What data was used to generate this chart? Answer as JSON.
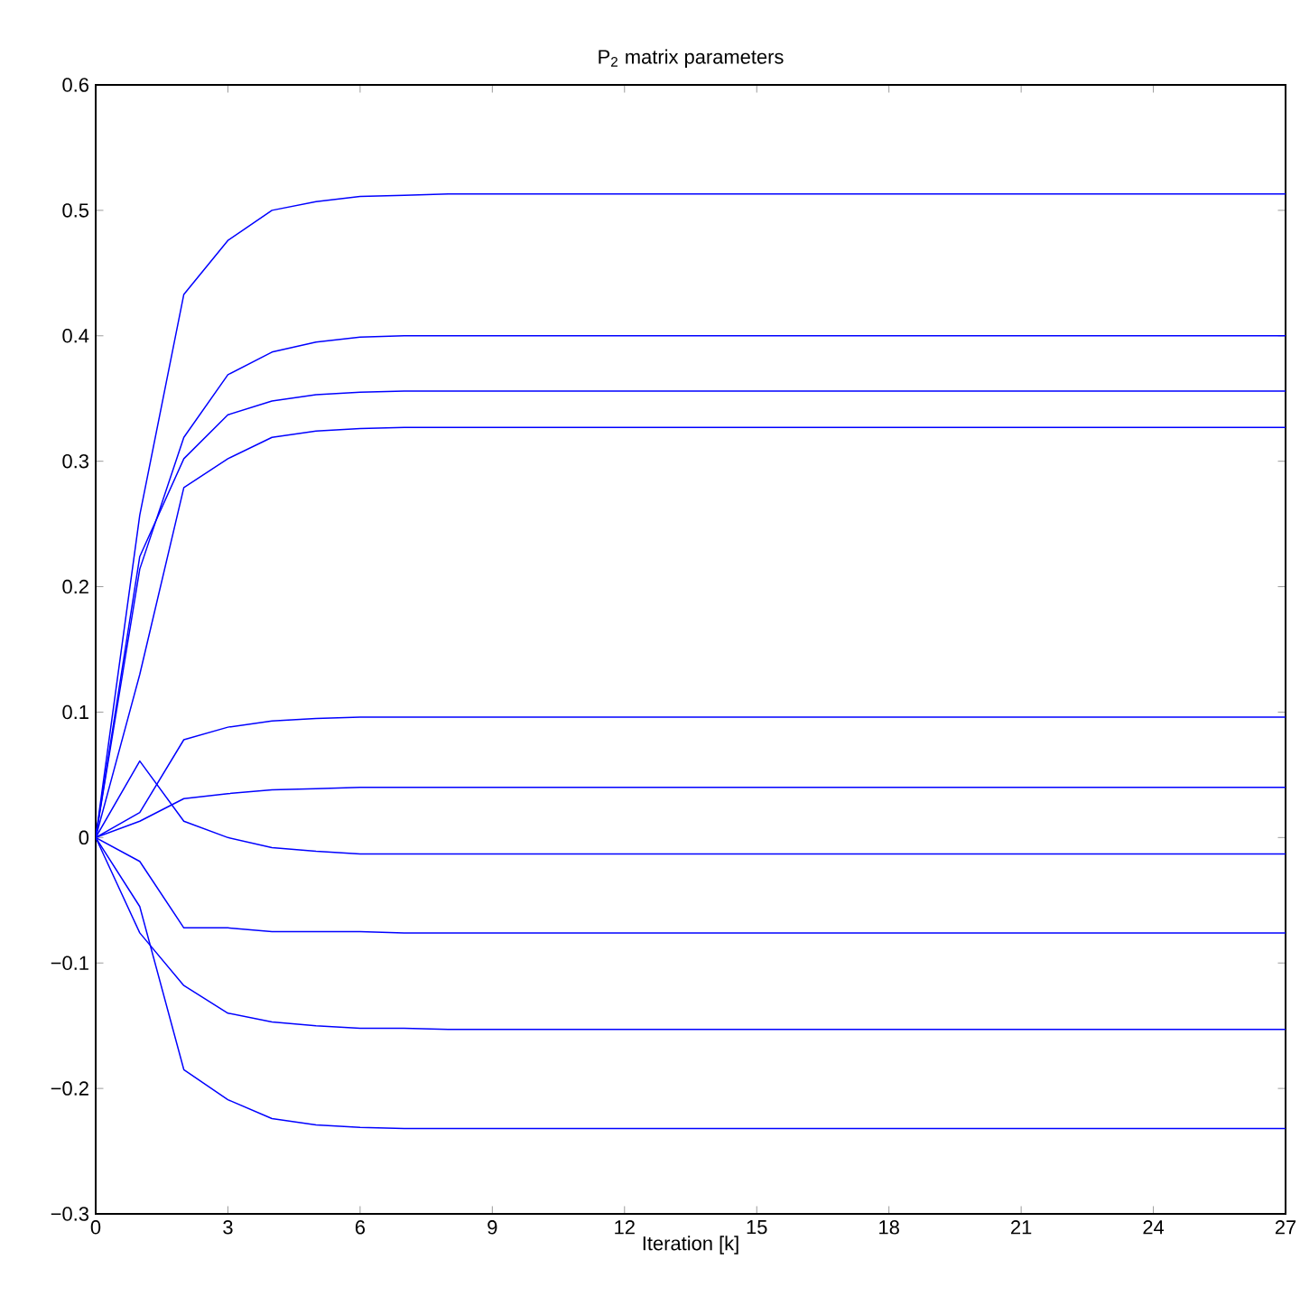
{
  "chart_data": {
    "type": "line",
    "title": "P$_{2}$ matrix parameters",
    "xlabel": "Iteration [k]",
    "x": [
      0,
      1,
      2,
      3,
      4,
      5,
      6,
      7,
      8,
      10,
      27
    ],
    "series": [
      {
        "color": "#0000ff",
        "values": [
          0,
          0.257,
          0.433,
          0.476,
          0.5,
          0.507,
          0.511,
          0.512,
          0.513,
          0.513,
          0.513
        ]
      },
      {
        "color": "#0000ff",
        "values": [
          0,
          0.214,
          0.319,
          0.369,
          0.387,
          0.395,
          0.399,
          0.4,
          0.4,
          0.4,
          0.4
        ]
      },
      {
        "color": "#0000ff",
        "values": [
          0,
          0.224,
          0.302,
          0.337,
          0.348,
          0.353,
          0.355,
          0.356,
          0.356,
          0.356,
          0.356
        ]
      },
      {
        "color": "#0000ff",
        "values": [
          0,
          0.13,
          0.279,
          0.302,
          0.319,
          0.324,
          0.326,
          0.327,
          0.327,
          0.327,
          0.327
        ]
      },
      {
        "color": "#0000ff",
        "values": [
          0,
          0.02,
          0.078,
          0.088,
          0.093,
          0.095,
          0.096,
          0.096,
          0.096,
          0.096,
          0.096
        ]
      },
      {
        "color": "#0000ff",
        "values": [
          0,
          0.013,
          0.031,
          0.035,
          0.038,
          0.039,
          0.04,
          0.04,
          0.04,
          0.04,
          0.04
        ]
      },
      {
        "color": "#0000ff",
        "values": [
          0,
          0.061,
          0.013,
          0,
          -0.008,
          -0.011,
          -0.013,
          -0.013,
          -0.013,
          -0.013,
          -0.013
        ]
      },
      {
        "color": "#0000ff",
        "values": [
          0,
          -0.019,
          -0.072,
          -0.072,
          -0.075,
          -0.075,
          -0.075,
          -0.076,
          -0.076,
          -0.076,
          -0.076
        ]
      },
      {
        "color": "#0000ff",
        "values": [
          0,
          -0.076,
          -0.118,
          -0.14,
          -0.147,
          -0.15,
          -0.152,
          -0.152,
          -0.153,
          -0.153,
          -0.153
        ]
      },
      {
        "color": "#0000ff",
        "values": [
          0,
          -0.055,
          -0.185,
          -0.209,
          -0.224,
          -0.229,
          -0.231,
          -0.232,
          -0.232,
          -0.232,
          -0.232
        ]
      }
    ],
    "xlim": [
      0,
      27
    ],
    "ylim": [
      -0.3,
      0.6
    ],
    "xticks": [
      0,
      3,
      6,
      9,
      12,
      15,
      18,
      21,
      24,
      27
    ],
    "yticks": [
      {
        "value": -0.3,
        "label": "−0.3"
      },
      {
        "value": -0.2,
        "label": "−0.2"
      },
      {
        "value": -0.1,
        "label": "−0.1"
      },
      0,
      0.1,
      0.2,
      0.3,
      0.4,
      0.5,
      0.6
    ]
  }
}
